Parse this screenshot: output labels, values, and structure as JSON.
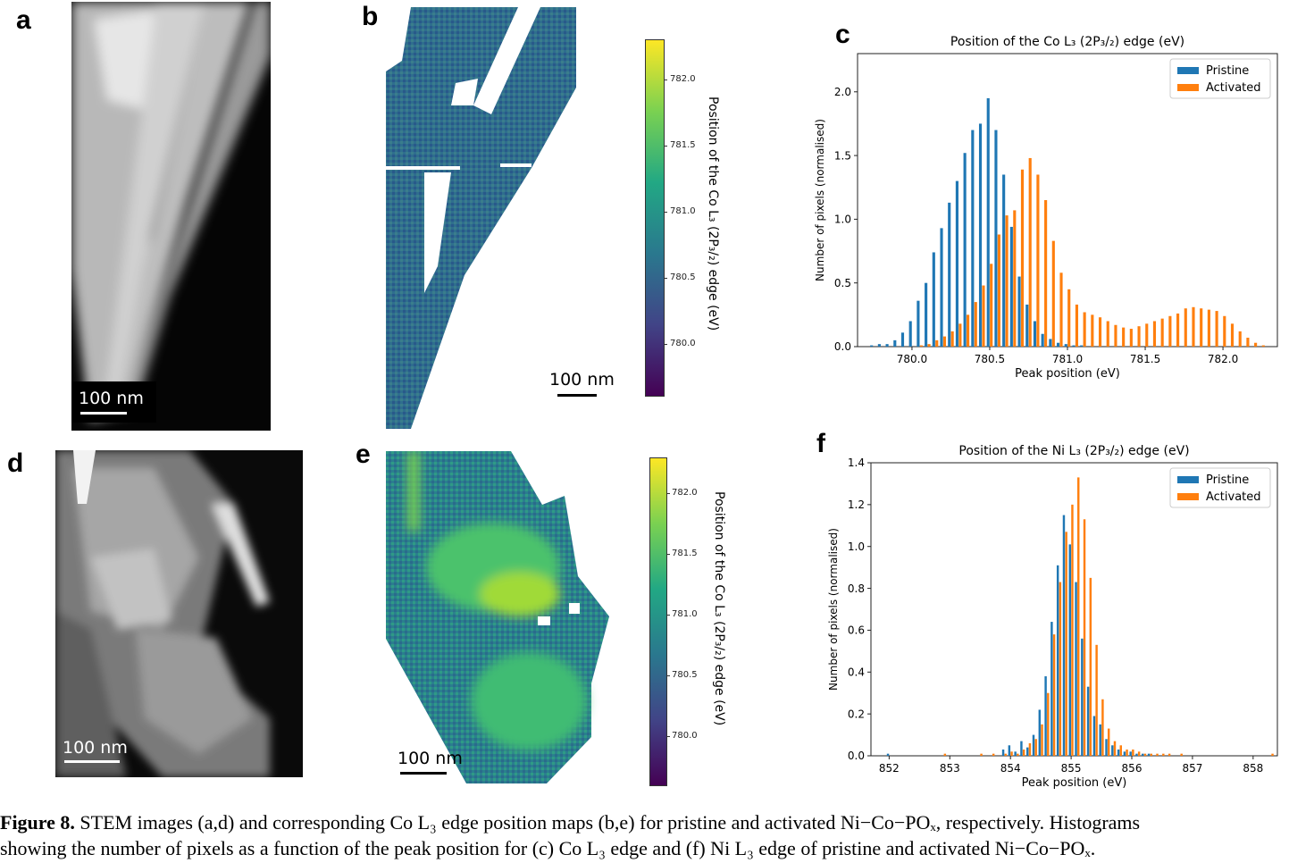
{
  "panels": {
    "a": {
      "letter": "a",
      "scalebar": "100 nm"
    },
    "b": {
      "letter": "b",
      "scalebar": "100 nm",
      "colorbar": {
        "label": "Position of the Co L₃ (2P₃/₂) edge (eV)",
        "ticks": [
          "782.0",
          "781.5",
          "781.0",
          "780.5",
          "780.0"
        ]
      }
    },
    "c": {
      "letter": "c"
    },
    "d": {
      "letter": "d",
      "scalebar": "100 nm"
    },
    "e": {
      "letter": "e",
      "scalebar": "100 nm",
      "colorbar": {
        "label": "Position of the Co L₃ (2P₃/₂) edge (eV)",
        "ticks": [
          "782.0",
          "781.5",
          "781.0",
          "780.5",
          "780.0"
        ]
      }
    },
    "f": {
      "letter": "f"
    }
  },
  "colors": {
    "pristine": "#1f77b4",
    "activated": "#ff7f0e"
  },
  "chart_data": [
    {
      "type": "bar",
      "panel": "c",
      "title": "Position of the Co L₃ (2P₃/₂) edge (eV)",
      "xlabel": "Peak position (eV)",
      "ylabel": "Number of pixels (normalised)",
      "xlim": [
        779.65,
        782.35
      ],
      "ylim": [
        0,
        2.3
      ],
      "xticks": [
        780.0,
        780.5,
        781.0,
        781.5,
        782.0
      ],
      "xtick_labels": [
        "780.0",
        "780.5",
        "781.0",
        "781.5",
        "782.0"
      ],
      "yticks": [
        0.0,
        0.5,
        1.0,
        1.5,
        2.0
      ],
      "ytick_labels": [
        "0.0",
        "0.5",
        "1.0",
        "1.5",
        "2.0"
      ],
      "legend_position": "top-right",
      "x": [
        779.75,
        779.8,
        779.85,
        779.9,
        779.95,
        780.0,
        780.05,
        780.1,
        780.15,
        780.2,
        780.25,
        780.3,
        780.35,
        780.4,
        780.45,
        780.5,
        780.55,
        780.6,
        780.65,
        780.7,
        780.75,
        780.8,
        780.85,
        780.9,
        780.95,
        781.0,
        781.05,
        781.1,
        781.15,
        781.2,
        781.25,
        781.3,
        781.35,
        781.4,
        781.45,
        781.5,
        781.55,
        781.6,
        781.65,
        781.7,
        781.75,
        781.8,
        781.85,
        781.9,
        781.95,
        782.0,
        782.05,
        782.1,
        782.15,
        782.2,
        782.25
      ],
      "series": [
        {
          "name": "Pristine",
          "values": [
            0.01,
            0.02,
            0.02,
            0.05,
            0.11,
            0.2,
            0.36,
            0.5,
            0.74,
            0.93,
            1.13,
            1.3,
            1.52,
            1.7,
            1.75,
            1.95,
            1.7,
            1.35,
            0.94,
            0.55,
            0.33,
            0.2,
            0.1,
            0.06,
            0.03,
            0.02,
            0.01,
            0.01,
            0,
            0,
            0,
            0,
            0,
            0,
            0,
            0,
            0,
            0,
            0,
            0,
            0,
            0,
            0,
            0,
            0,
            0,
            0,
            0,
            0,
            0,
            0
          ]
        },
        {
          "name": "Activated",
          "values": [
            0,
            0,
            0,
            0,
            0,
            0,
            0.01,
            0.02,
            0.05,
            0.08,
            0.12,
            0.18,
            0.25,
            0.35,
            0.48,
            0.65,
            0.88,
            1.03,
            1.07,
            1.39,
            1.48,
            1.35,
            1.15,
            0.83,
            0.58,
            0.45,
            0.33,
            0.27,
            0.25,
            0.23,
            0.2,
            0.17,
            0.15,
            0.14,
            0.16,
            0.18,
            0.2,
            0.22,
            0.24,
            0.26,
            0.3,
            0.31,
            0.3,
            0.29,
            0.28,
            0.24,
            0.18,
            0.12,
            0.07,
            0.03,
            0.01
          ]
        }
      ]
    },
    {
      "type": "bar",
      "panel": "f",
      "title": "Position of the Ni L₃ (2P₃/₂) edge (eV)",
      "xlabel": "Peak position (eV)",
      "ylabel": "Number of pixels (normalised)",
      "xlim": [
        851.7,
        858.4
      ],
      "ylim": [
        0,
        1.4
      ],
      "xticks": [
        852,
        853,
        854,
        855,
        856,
        857,
        858
      ],
      "xtick_labels": [
        "852",
        "853",
        "854",
        "855",
        "856",
        "857",
        "858"
      ],
      "yticks": [
        0.0,
        0.2,
        0.4,
        0.6,
        0.8,
        1.0,
        1.2,
        1.4
      ],
      "ytick_labels": [
        "0.0",
        "0.2",
        "0.4",
        "0.6",
        "0.8",
        "1.0",
        "1.2",
        "1.4"
      ],
      "legend_position": "top-right",
      "x": [
        852.0,
        852.1,
        852.2,
        852.3,
        852.4,
        852.5,
        852.6,
        852.7,
        852.8,
        852.9,
        853.0,
        853.1,
        853.2,
        853.3,
        853.4,
        853.5,
        853.6,
        853.7,
        853.8,
        853.9,
        854.0,
        854.1,
        854.2,
        854.3,
        854.4,
        854.5,
        854.6,
        854.7,
        854.8,
        854.9,
        855.0,
        855.1,
        855.2,
        855.3,
        855.4,
        855.5,
        855.6,
        855.7,
        855.8,
        855.9,
        856.0,
        856.1,
        856.2,
        856.3,
        856.4,
        856.5,
        856.6,
        856.7,
        856.8,
        856.9,
        857.0,
        857.1,
        857.2,
        857.3,
        857.4,
        857.5,
        857.6,
        857.7,
        857.8,
        857.9,
        858.0,
        858.1,
        858.2,
        858.3
      ],
      "series": [
        {
          "name": "Pristine",
          "values": [
            0.01,
            0,
            0,
            0,
            0,
            0,
            0,
            0,
            0,
            0,
            0,
            0,
            0,
            0,
            0,
            0,
            0,
            0,
            0,
            0.03,
            0.05,
            0.02,
            0.07,
            0.04,
            0.1,
            0.22,
            0.38,
            0.64,
            0.91,
            1.15,
            1.01,
            0.83,
            0.56,
            0.33,
            0.19,
            0.15,
            0.08,
            0.05,
            0.03,
            0.02,
            0.02,
            0.01,
            0.01,
            0.01,
            0,
            0,
            0,
            0,
            0,
            0,
            0,
            0,
            0,
            0,
            0,
            0,
            0,
            0,
            0,
            0,
            0,
            0,
            0,
            0
          ]
        },
        {
          "name": "Activated",
          "values": [
            0,
            0,
            0,
            0,
            0,
            0,
            0,
            0,
            0,
            0.01,
            0,
            0,
            0,
            0,
            0,
            0.01,
            0,
            0.01,
            0,
            0.01,
            0.02,
            0.01,
            0.03,
            0.06,
            0.08,
            0.15,
            0.3,
            0.58,
            0.83,
            1.07,
            1.2,
            1.33,
            1.13,
            0.85,
            0.53,
            0.27,
            0.13,
            0.07,
            0.05,
            0.03,
            0.03,
            0.02,
            0.01,
            0.01,
            0.01,
            0.01,
            0.01,
            0,
            0.01,
            0,
            0,
            0,
            0,
            0,
            0,
            0,
            0,
            0,
            0,
            0,
            0,
            0,
            0,
            0.01
          ]
        }
      ]
    }
  ],
  "caption": {
    "label": "Figure 8.",
    "line1": "STEM images (a,d) and corresponding Co L₃ edge position maps (b,e) for pristine and activated Ni−Co−POₓ, respectively. Histograms",
    "line2": "showing the number of pixels as a function of the peak position for (c) Co L₃ edge and (f) Ni L₃ edge of pristine and activated Ni−Co−POₓ."
  }
}
